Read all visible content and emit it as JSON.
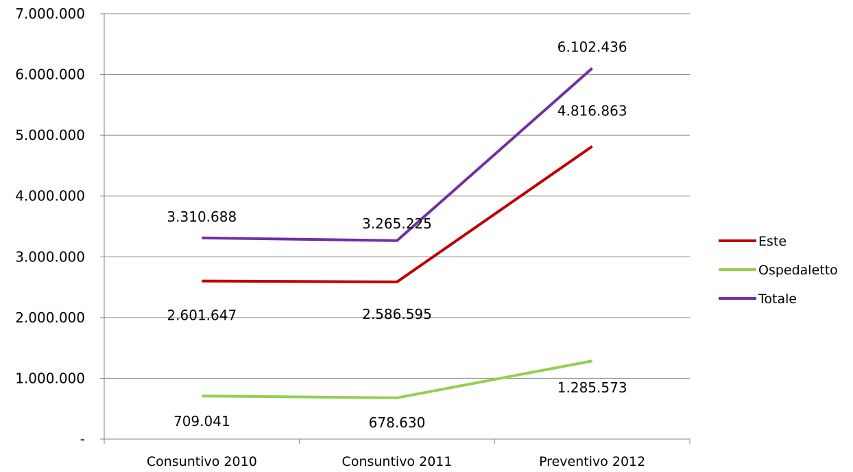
{
  "chart_data": {
    "type": "line",
    "categories": [
      "Consuntivo 2010",
      "Consuntivo 2011",
      "Preventivo 2012"
    ],
    "series": [
      {
        "name": "Este",
        "values": [
          2601647,
          2586595,
          4816863
        ],
        "labels": [
          "2.601.647",
          "2.586.595",
          "4.816.863"
        ],
        "color": "#C00000"
      },
      {
        "name": "Ospedaletto",
        "values": [
          709041,
          678630,
          1285573
        ],
        "labels": [
          "709.041",
          "678.630",
          "1.285.573"
        ],
        "color": "#92D050"
      },
      {
        "name": "Totale",
        "values": [
          3310688,
          3265225,
          6102436
        ],
        "labels": [
          "3.310.688",
          "3.265.225",
          "6.102.436"
        ],
        "color": "#7030A0"
      }
    ],
    "y_ticks": [
      0,
      1000000,
      2000000,
      3000000,
      4000000,
      5000000,
      6000000,
      7000000
    ],
    "y_tick_labels": [
      "-",
      "1.000.000",
      "2.000.000",
      "3.000.000",
      "4.000.000",
      "5.000.000",
      "6.000.000",
      "7.000.000"
    ],
    "ylim": [
      0,
      7000000
    ],
    "grid": true,
    "legend_position": "right"
  }
}
